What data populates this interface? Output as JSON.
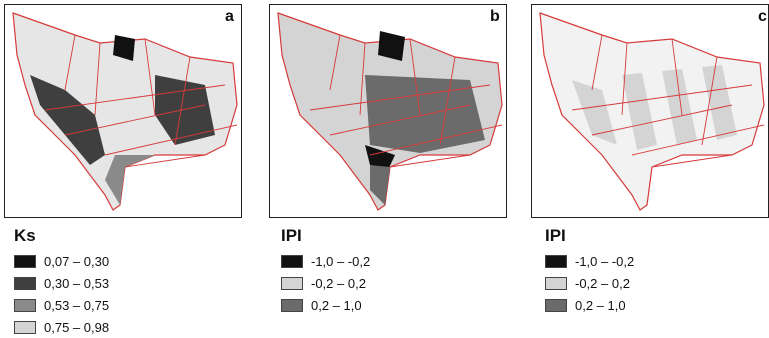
{
  "panels": [
    {
      "letter": "a"
    },
    {
      "letter": "b"
    },
    {
      "letter": "c"
    }
  ],
  "legends": [
    {
      "title": "Ks",
      "items": [
        {
          "label": "0,07 – 0,30",
          "color": "#111111"
        },
        {
          "label": "0,30 – 0,53",
          "color": "#3f3f3f"
        },
        {
          "label": "0,53 – 0,75",
          "color": "#8a8a8a"
        },
        {
          "label": "0,75 – 0,98",
          "color": "#d4d4d4"
        }
      ]
    },
    {
      "title": "IPI",
      "items": [
        {
          "label": "-1,0 – -0,2",
          "color": "#111111"
        },
        {
          "label": "-0,2 – 0,2",
          "color": "#d4d4d4"
        },
        {
          "label": "0,2 – 1,0",
          "color": "#6b6b6b"
        }
      ]
    },
    {
      "title": "IPI",
      "items": [
        {
          "label": "-1,0 – -0,2",
          "color": "#111111"
        },
        {
          "label": "-0,2 – 0,2",
          "color": "#d4d4d4"
        },
        {
          "label": "0,2 – 1,0",
          "color": "#6b6b6b"
        }
      ]
    }
  ],
  "colors": {
    "boundary": "#d63a3a",
    "frame": "#222222"
  }
}
